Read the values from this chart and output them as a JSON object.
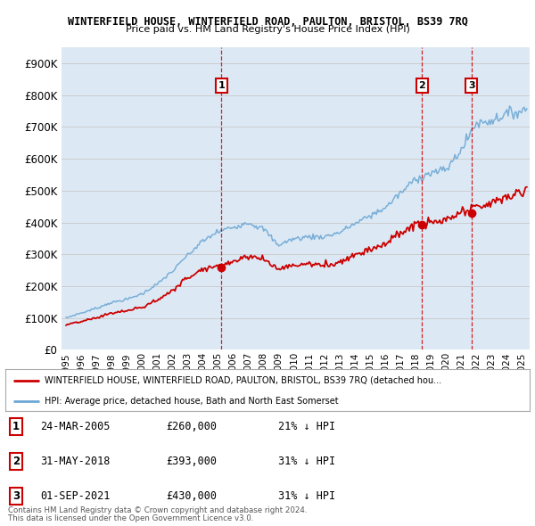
{
  "title1": "WINTERFIELD HOUSE, WINTERFIELD ROAD, PAULTON, BRISTOL, BS39 7RQ",
  "title2": "Price paid vs. HM Land Registry's House Price Index (HPI)",
  "ylabel_ticks": [
    "£0",
    "£100K",
    "£200K",
    "£300K",
    "£400K",
    "£500K",
    "£600K",
    "£700K",
    "£800K",
    "£900K"
  ],
  "ylim": [
    0,
    950000
  ],
  "xlim_start": 1994.7,
  "xlim_end": 2025.5,
  "sale_dates": [
    2005.23,
    2018.42,
    2021.67
  ],
  "sale_prices": [
    260000,
    393000,
    430000
  ],
  "sale_labels": [
    "1",
    "2",
    "3"
  ],
  "line_color_red": "#cc0000",
  "line_color_blue": "#6fa8d4",
  "grid_color": "#cccccc",
  "bg_color": "#dce9f5",
  "legend_label_red": "WINTERFIELD HOUSE, WINTERFIELD ROAD, PAULTON, BRISTOL, BS39 7RQ (detached hou...",
  "legend_label_blue": "HPI: Average price, detached house, Bath and North East Somerset",
  "table_data": [
    [
      "1",
      "24-MAR-2005",
      "£260,000",
      "21% ↓ HPI"
    ],
    [
      "2",
      "31-MAY-2018",
      "£393,000",
      "31% ↓ HPI"
    ],
    [
      "3",
      "01-SEP-2021",
      "£430,000",
      "31% ↓ HPI"
    ]
  ],
  "footnote1": "Contains HM Land Registry data © Crown copyright and database right 2024.",
  "footnote2": "This data is licensed under the Open Government Licence v3.0."
}
